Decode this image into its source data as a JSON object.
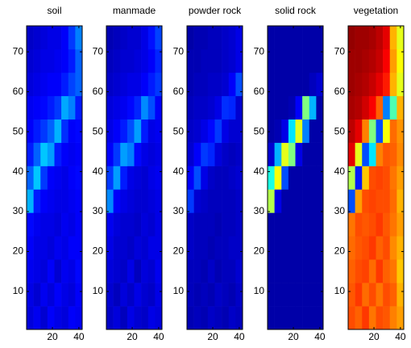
{
  "chart_data": [
    {
      "type": "heatmap",
      "title": "soil",
      "colormap": "jet",
      "zlim": [
        0,
        1
      ],
      "xlim": [
        0.5,
        42.5
      ],
      "ylim": [
        0.5,
        76.5
      ],
      "xticks": [
        20,
        40
      ],
      "yticks": [
        10,
        20,
        30,
        40,
        50,
        60,
        70
      ],
      "z": [
        [
          0.09,
          0.11,
          0.08,
          0.12,
          0.1,
          0.09,
          0.12,
          0.11
        ],
        [
          0.1,
          0.08,
          0.11,
          0.09,
          0.12,
          0.1,
          0.09,
          0.12
        ],
        [
          0.11,
          0.1,
          0.09,
          0.12,
          0.08,
          0.11,
          0.1,
          0.13
        ],
        [
          0.12,
          0.1,
          0.1,
          0.09,
          0.11,
          0.1,
          0.12,
          0.12
        ],
        [
          0.13,
          0.11,
          0.1,
          0.1,
          0.09,
          0.11,
          0.1,
          0.12
        ],
        [
          0.3,
          0.15,
          0.12,
          0.11,
          0.1,
          0.1,
          0.11,
          0.12
        ],
        [
          0.22,
          0.32,
          0.18,
          0.12,
          0.11,
          0.1,
          0.12,
          0.13
        ],
        [
          0.15,
          0.22,
          0.32,
          0.28,
          0.15,
          0.12,
          0.11,
          0.12
        ],
        [
          0.12,
          0.15,
          0.18,
          0.22,
          0.3,
          0.17,
          0.12,
          0.13
        ],
        [
          0.11,
          0.12,
          0.13,
          0.15,
          0.18,
          0.29,
          0.25,
          0.15
        ],
        [
          0.09,
          0.1,
          0.11,
          0.12,
          0.12,
          0.15,
          0.19,
          0.22
        ],
        [
          0.08,
          0.09,
          0.1,
          0.1,
          0.11,
          0.12,
          0.15,
          0.22
        ],
        [
          0.07,
          0.08,
          0.09,
          0.1,
          0.1,
          0.12,
          0.18,
          0.25
        ]
      ]
    },
    {
      "type": "heatmap",
      "title": "manmade",
      "colormap": "jet",
      "zlim": [
        0,
        1
      ],
      "xlim": [
        0.5,
        42.5
      ],
      "ylim": [
        0.5,
        76.5
      ],
      "xticks": [
        20,
        40
      ],
      "yticks": [
        10,
        20,
        30,
        40,
        50,
        60,
        70
      ],
      "z": [
        [
          0.07,
          0.09,
          0.06,
          0.1,
          0.08,
          0.07,
          0.1,
          0.09
        ],
        [
          0.08,
          0.06,
          0.09,
          0.07,
          0.1,
          0.08,
          0.07,
          0.1
        ],
        [
          0.09,
          0.08,
          0.07,
          0.1,
          0.06,
          0.09,
          0.08,
          0.11
        ],
        [
          0.1,
          0.08,
          0.08,
          0.07,
          0.09,
          0.08,
          0.1,
          0.1
        ],
        [
          0.11,
          0.09,
          0.08,
          0.08,
          0.07,
          0.09,
          0.08,
          0.1
        ],
        [
          0.26,
          0.12,
          0.1,
          0.09,
          0.08,
          0.08,
          0.09,
          0.1
        ],
        [
          0.18,
          0.28,
          0.15,
          0.1,
          0.09,
          0.08,
          0.1,
          0.11
        ],
        [
          0.12,
          0.18,
          0.28,
          0.25,
          0.13,
          0.1,
          0.09,
          0.1
        ],
        [
          0.1,
          0.12,
          0.15,
          0.2,
          0.28,
          0.15,
          0.1,
          0.11
        ],
        [
          0.09,
          0.1,
          0.11,
          0.13,
          0.16,
          0.26,
          0.2,
          0.12
        ],
        [
          0.07,
          0.08,
          0.09,
          0.1,
          0.1,
          0.12,
          0.15,
          0.18
        ],
        [
          0.06,
          0.07,
          0.08,
          0.08,
          0.09,
          0.1,
          0.12,
          0.16
        ],
        [
          0.05,
          0.06,
          0.07,
          0.08,
          0.08,
          0.1,
          0.14,
          0.19
        ]
      ]
    },
    {
      "type": "heatmap",
      "title": "powder rock",
      "colormap": "jet",
      "zlim": [
        0,
        1
      ],
      "xlim": [
        0.5,
        42.5
      ],
      "ylim": [
        0.5,
        76.5
      ],
      "xticks": [
        20,
        40
      ],
      "yticks": [
        10,
        20,
        30,
        40,
        50,
        60,
        70
      ],
      "z": [
        [
          0.05,
          0.06,
          0.05,
          0.07,
          0.06,
          0.05,
          0.07,
          0.06
        ],
        [
          0.06,
          0.05,
          0.06,
          0.05,
          0.07,
          0.06,
          0.05,
          0.07
        ],
        [
          0.06,
          0.06,
          0.05,
          0.07,
          0.05,
          0.06,
          0.06,
          0.08
        ],
        [
          0.07,
          0.06,
          0.06,
          0.05,
          0.06,
          0.06,
          0.07,
          0.07
        ],
        [
          0.07,
          0.06,
          0.06,
          0.06,
          0.05,
          0.06,
          0.06,
          0.07
        ],
        [
          0.18,
          0.08,
          0.07,
          0.06,
          0.06,
          0.06,
          0.06,
          0.07
        ],
        [
          0.12,
          0.2,
          0.1,
          0.07,
          0.06,
          0.06,
          0.07,
          0.08
        ],
        [
          0.08,
          0.12,
          0.18,
          0.16,
          0.09,
          0.07,
          0.06,
          0.07
        ],
        [
          0.07,
          0.08,
          0.1,
          0.13,
          0.18,
          0.1,
          0.08,
          0.08
        ],
        [
          0.06,
          0.07,
          0.07,
          0.08,
          0.1,
          0.17,
          0.16,
          0.08
        ],
        [
          0.05,
          0.06,
          0.06,
          0.07,
          0.07,
          0.08,
          0.12,
          0.2
        ],
        [
          0.05,
          0.05,
          0.06,
          0.06,
          0.06,
          0.07,
          0.08,
          0.1
        ],
        [
          0.04,
          0.05,
          0.05,
          0.06,
          0.06,
          0.07,
          0.08,
          0.1
        ]
      ]
    },
    {
      "type": "heatmap",
      "title": "solid rock",
      "colormap": "jet",
      "zlim": [
        0,
        1
      ],
      "xlim": [
        0.5,
        42.5
      ],
      "ylim": [
        0.5,
        76.5
      ],
      "xticks": [
        20,
        40
      ],
      "yticks": [
        10,
        20,
        30,
        40,
        50,
        60,
        70
      ],
      "z": [
        [
          0.04,
          0.04,
          0.04,
          0.04,
          0.04,
          0.04,
          0.04,
          0.04
        ],
        [
          0.04,
          0.04,
          0.04,
          0.04,
          0.04,
          0.04,
          0.04,
          0.04
        ],
        [
          0.04,
          0.04,
          0.04,
          0.04,
          0.04,
          0.04,
          0.04,
          0.04
        ],
        [
          0.04,
          0.04,
          0.04,
          0.04,
          0.04,
          0.04,
          0.04,
          0.04
        ],
        [
          0.04,
          0.04,
          0.04,
          0.04,
          0.04,
          0.04,
          0.04,
          0.04
        ],
        [
          0.55,
          0.1,
          0.04,
          0.04,
          0.04,
          0.04,
          0.04,
          0.04
        ],
        [
          0.4,
          0.62,
          0.2,
          0.04,
          0.04,
          0.04,
          0.04,
          0.04
        ],
        [
          0.08,
          0.3,
          0.6,
          0.5,
          0.1,
          0.04,
          0.04,
          0.04
        ],
        [
          0.04,
          0.05,
          0.1,
          0.35,
          0.6,
          0.25,
          0.04,
          0.04
        ],
        [
          0.04,
          0.04,
          0.04,
          0.05,
          0.12,
          0.5,
          0.3,
          0.04
        ],
        [
          0.04,
          0.04,
          0.04,
          0.04,
          0.04,
          0.04,
          0.06,
          0.08
        ],
        [
          0.04,
          0.04,
          0.04,
          0.04,
          0.04,
          0.04,
          0.04,
          0.04
        ],
        [
          0.04,
          0.04,
          0.04,
          0.04,
          0.04,
          0.04,
          0.04,
          0.04
        ]
      ]
    },
    {
      "type": "heatmap",
      "title": "vegetation",
      "colormap": "jet",
      "zlim": [
        0,
        1
      ],
      "xlim": [
        0.5,
        42.5
      ],
      "ylim": [
        0.5,
        76.5
      ],
      "xticks": [
        20,
        40
      ],
      "yticks": [
        10,
        20,
        30,
        40,
        50,
        60,
        70
      ],
      "z": [
        [
          0.8,
          0.78,
          0.82,
          0.76,
          0.8,
          0.79,
          0.75,
          0.72
        ],
        [
          0.79,
          0.82,
          0.77,
          0.8,
          0.76,
          0.8,
          0.78,
          0.7
        ],
        [
          0.78,
          0.8,
          0.81,
          0.77,
          0.82,
          0.78,
          0.76,
          0.68
        ],
        [
          0.77,
          0.79,
          0.8,
          0.82,
          0.78,
          0.8,
          0.74,
          0.7
        ],
        [
          0.76,
          0.8,
          0.79,
          0.8,
          0.82,
          0.79,
          0.76,
          0.72
        ],
        [
          0.2,
          0.72,
          0.8,
          0.81,
          0.8,
          0.8,
          0.77,
          0.7
        ],
        [
          0.55,
          0.15,
          0.68,
          0.8,
          0.81,
          0.8,
          0.76,
          0.72
        ],
        [
          0.9,
          0.6,
          0.2,
          0.35,
          0.75,
          0.79,
          0.78,
          0.74
        ],
        [
          0.94,
          0.9,
          0.75,
          0.5,
          0.2,
          0.62,
          0.77,
          0.73
        ],
        [
          0.96,
          0.95,
          0.92,
          0.88,
          0.78,
          0.25,
          0.45,
          0.7
        ],
        [
          0.97,
          0.96,
          0.95,
          0.93,
          0.9,
          0.85,
          0.7,
          0.6
        ],
        [
          0.97,
          0.97,
          0.96,
          0.95,
          0.93,
          0.88,
          0.72,
          0.62
        ],
        [
          0.98,
          0.97,
          0.97,
          0.96,
          0.94,
          0.9,
          0.7,
          0.6
        ]
      ]
    }
  ]
}
